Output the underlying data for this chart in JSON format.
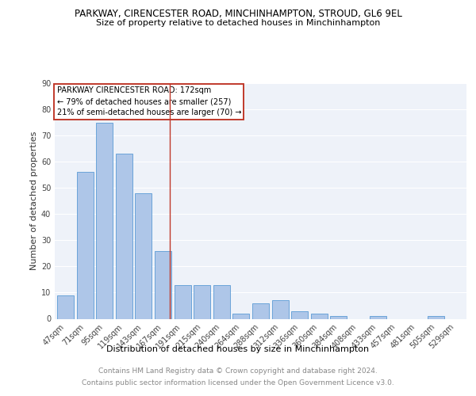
{
  "title": "PARKWAY, CIRENCESTER ROAD, MINCHINHAMPTON, STROUD, GL6 9EL",
  "subtitle": "Size of property relative to detached houses in Minchinhampton",
  "xlabel": "Distribution of detached houses by size in Minchinhampton",
  "ylabel": "Number of detached properties",
  "categories": [
    "47sqm",
    "71sqm",
    "95sqm",
    "119sqm",
    "143sqm",
    "167sqm",
    "191sqm",
    "215sqm",
    "240sqm",
    "264sqm",
    "288sqm",
    "312sqm",
    "336sqm",
    "360sqm",
    "384sqm",
    "408sqm",
    "433sqm",
    "457sqm",
    "481sqm",
    "505sqm",
    "529sqm"
  ],
  "values": [
    9,
    56,
    75,
    63,
    48,
    26,
    13,
    13,
    13,
    2,
    6,
    7,
    3,
    2,
    1,
    0,
    1,
    0,
    0,
    1,
    0
  ],
  "bar_color": "#aec6e8",
  "bar_edge_color": "#5b9bd5",
  "vline_color": "#c0392b",
  "vline_pos": 5.35,
  "annotation_line1": "PARKWAY CIRENCESTER ROAD: 172sqm",
  "annotation_line2": "← 79% of detached houses are smaller (257)",
  "annotation_line3": "21% of semi-detached houses are larger (70) →",
  "annotation_box_color": "#c0392b",
  "ylim": [
    0,
    90
  ],
  "yticks": [
    0,
    10,
    20,
    30,
    40,
    50,
    60,
    70,
    80,
    90
  ],
  "footer_line1": "Contains HM Land Registry data © Crown copyright and database right 2024.",
  "footer_line2": "Contains public sector information licensed under the Open Government Licence v3.0.",
  "background_color": "#eef2f9",
  "grid_color": "#ffffff",
  "title_fontsize": 8.5,
  "subtitle_fontsize": 8,
  "ylabel_fontsize": 8,
  "xlabel_fontsize": 8,
  "footer_fontsize": 6.5,
  "tick_fontsize": 7,
  "ann_fontsize": 7
}
